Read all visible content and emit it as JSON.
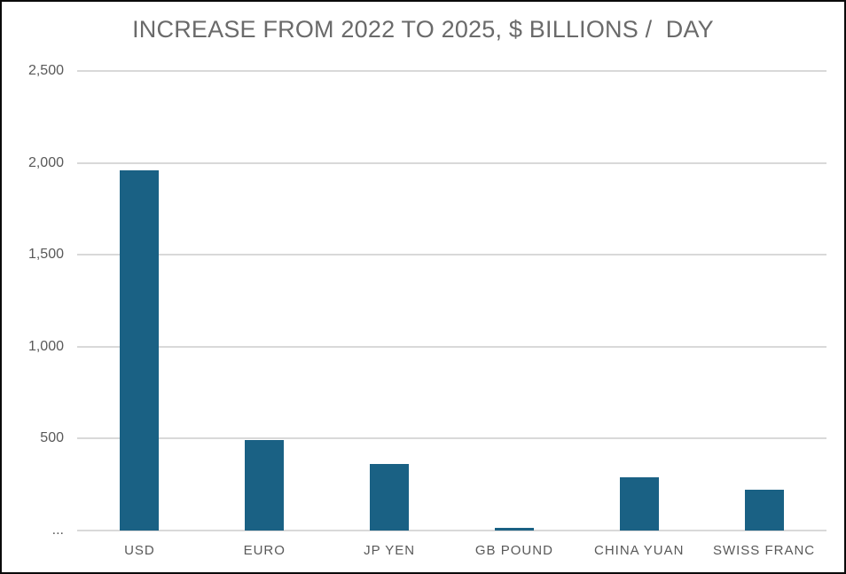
{
  "chart_data": {
    "type": "bar",
    "title": "INCREASE FROM 2022 TO 2025, $ BILLIONS /  DAY",
    "categories": [
      "USD",
      "EURO",
      "JP YEN",
      "GB POUND",
      "CHINA YUAN",
      "SWISS FRANC"
    ],
    "values": [
      1960,
      490,
      360,
      15,
      290,
      220
    ],
    "xlabel": "",
    "ylabel": "",
    "ylim": [
      0,
      2500
    ],
    "ytick_interval": 500,
    "yticks_top_down": [
      "2,500",
      "2,000",
      "1,500",
      "1,000",
      "500",
      "..."
    ],
    "zero_label": "...",
    "grid": true,
    "legend": false,
    "colors": {
      "bar": "#1a6184",
      "gridline": "#d9d9d9",
      "axis_text": "#595959",
      "title_text": "#6a6a6a",
      "frame_border": "#0a0a0a",
      "background": "#ffffff"
    }
  }
}
